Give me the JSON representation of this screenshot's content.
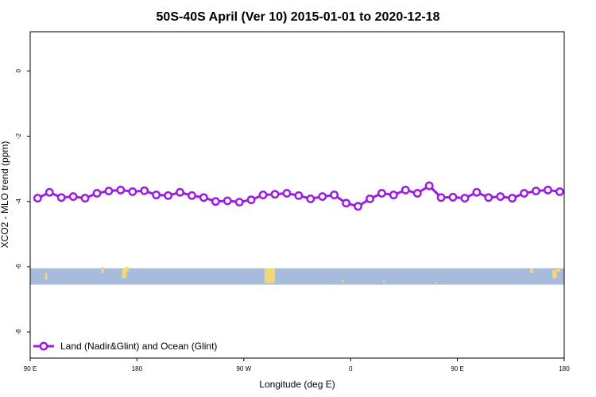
{
  "chart_data": {
    "type": "line",
    "title": "50S-40S April (Ver 10)   2015-01-01 to 2020-12-18",
    "xlabel": "Longitude (deg E)",
    "ylabel": "XCO2 - MLO trend (ppm)",
    "xlim": [
      -90,
      270
    ],
    "ylim": [
      -8.8,
      1.2
    ],
    "x_ticks": [
      {
        "value": -90,
        "label": "90 E"
      },
      {
        "value": -18,
        "label": "180"
      },
      {
        "value": 54,
        "label": "90 W"
      },
      {
        "value": 126,
        "label": "0"
      },
      {
        "value": 198,
        "label": "90 E"
      },
      {
        "value": 270,
        "label": "180"
      }
    ],
    "y_ticks": [
      {
        "value": 0,
        "label": "0"
      },
      {
        "value": -2,
        "label": "-2"
      },
      {
        "value": -4,
        "label": "-4"
      },
      {
        "value": -6,
        "label": "-6"
      },
      {
        "value": -8,
        "label": "-8"
      }
    ],
    "grid": false,
    "legend_position": "bottom-left",
    "series": [
      {
        "name": "Land (Nadir&Glint) and Ocean (Glint)",
        "color": "#9b1ee0",
        "x": [
          -85,
          -77,
          -69,
          -61,
          -53,
          -45,
          -37,
          -29,
          -21,
          -13,
          -5,
          3,
          11,
          19,
          27,
          35,
          43,
          51,
          59,
          67,
          75,
          83,
          91,
          99,
          107,
          115,
          123,
          131,
          139,
          147,
          155,
          163,
          171,
          179,
          187,
          195,
          203,
          211,
          219,
          227,
          235,
          243,
          251,
          259,
          267
        ],
        "y": [
          -3.9,
          -3.72,
          -3.88,
          -3.85,
          -3.9,
          -3.75,
          -3.68,
          -3.65,
          -3.7,
          -3.67,
          -3.8,
          -3.82,
          -3.72,
          -3.82,
          -3.88,
          -4.0,
          -3.98,
          -4.02,
          -3.95,
          -3.8,
          -3.78,
          -3.75,
          -3.82,
          -3.92,
          -3.85,
          -3.8,
          -4.05,
          -4.15,
          -3.92,
          -3.75,
          -3.8,
          -3.65,
          -3.75,
          -3.52,
          -3.88,
          -3.87,
          -3.9,
          -3.72,
          -3.88,
          -3.85,
          -3.9,
          -3.75,
          -3.68,
          -3.65,
          -3.7
        ]
      }
    ],
    "coverage_band": {
      "ymin": -6.55,
      "ymax": -6.05,
      "ocean_color": "#a7bcdb",
      "land_color": "#f2d774",
      "land_patches": [
        {
          "x": -80,
          "y": -6.4,
          "w": 1.5,
          "h": 0.2
        },
        {
          "x": -42,
          "y": -6.2,
          "w": 1.5,
          "h": 0.2
        },
        {
          "x": -28,
          "y": -6.35,
          "w": 3,
          "h": 0.3
        },
        {
          "x": -26,
          "y": -6.15,
          "w": 2.5,
          "h": 0.15
        },
        {
          "x": 68,
          "y": -6.5,
          "w": 7,
          "h": 0.45
        },
        {
          "x": 71,
          "y": -6.25,
          "w": 4,
          "h": 0.2
        },
        {
          "x": 120,
          "y": -6.5,
          "w": 1,
          "h": 0.1
        },
        {
          "x": 148,
          "y": -6.5,
          "w": 1,
          "h": 0.08
        },
        {
          "x": 183,
          "y": -6.55,
          "w": 1,
          "h": 0.08
        },
        {
          "x": 247,
          "y": -6.2,
          "w": 2,
          "h": 0.15
        },
        {
          "x": 262,
          "y": -6.35,
          "w": 3,
          "h": 0.25
        },
        {
          "x": 265,
          "y": -6.15,
          "w": 2,
          "h": 0.12
        }
      ]
    }
  }
}
